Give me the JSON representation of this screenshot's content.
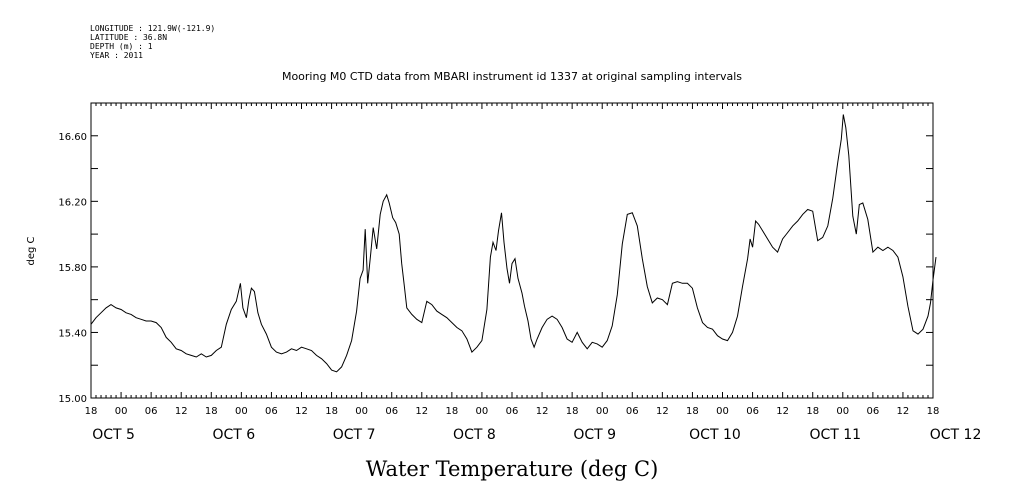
{
  "header": {
    "metadata": [
      "LONGITUDE : 121.9W(-121.9)",
      "LATITUDE : 36.8N",
      "DEPTH (m) : 1",
      "YEAR : 2011"
    ]
  },
  "chart_data": {
    "type": "line",
    "title": "Mooring M0 CTD data from MBARI instrument id 1337 at original sampling intervals",
    "xlabel": "Water Temperature (deg C)",
    "ylabel": "deg C",
    "ylim": [
      15.0,
      16.8
    ],
    "y_ticks": [
      "15.00",
      "15.40",
      "15.80",
      "16.20",
      "16.60"
    ],
    "x_hour_ticks": [
      "18",
      "00",
      "06",
      "12",
      "18",
      "00",
      "06",
      "12",
      "18",
      "00",
      "06",
      "12",
      "18",
      "00",
      "06",
      "12",
      "18",
      "00",
      "06",
      "12",
      "18",
      "00",
      "06",
      "12",
      "18",
      "00",
      "06",
      "12",
      "18"
    ],
    "x_day_labels": [
      "OCT  5",
      "OCT  6",
      "OCT  7",
      "OCT  8",
      "OCT  9",
      "OCT 10",
      "OCT 11",
      "OCT 12"
    ],
    "x_range_hours": [
      -6,
      162
    ],
    "x_unit": "hours since 2011-10-05 00:00",
    "grid": false,
    "series": [
      {
        "values": [
          [
            -6,
            15.45
          ],
          [
            -5,
            15.49
          ],
          [
            -4,
            15.52
          ],
          [
            -3,
            15.55
          ],
          [
            -2,
            15.57
          ],
          [
            -1,
            15.55
          ],
          [
            0,
            15.54
          ],
          [
            1,
            15.52
          ],
          [
            2,
            15.51
          ],
          [
            3,
            15.49
          ],
          [
            4,
            15.48
          ],
          [
            5,
            15.47
          ],
          [
            6,
            15.47
          ],
          [
            7,
            15.46
          ],
          [
            8,
            15.43
          ],
          [
            9,
            15.37
          ],
          [
            10,
            15.34
          ],
          [
            11,
            15.3
          ],
          [
            12,
            15.29
          ],
          [
            13,
            15.27
          ],
          [
            14,
            15.26
          ],
          [
            15,
            15.25
          ],
          [
            16,
            15.27
          ],
          [
            17,
            15.25
          ],
          [
            18,
            15.26
          ],
          [
            19,
            15.29
          ],
          [
            20,
            15.31
          ],
          [
            21,
            15.45
          ],
          [
            22,
            15.54
          ],
          [
            23,
            15.59
          ],
          [
            23.8,
            15.7
          ],
          [
            24.3,
            15.55
          ],
          [
            25,
            15.49
          ],
          [
            25.5,
            15.6
          ],
          [
            26,
            15.67
          ],
          [
            26.6,
            15.65
          ],
          [
            27.3,
            15.52
          ],
          [
            28,
            15.45
          ],
          [
            29,
            15.39
          ],
          [
            30,
            15.31
          ],
          [
            31,
            15.28
          ],
          [
            32,
            15.27
          ],
          [
            33,
            15.28
          ],
          [
            34,
            15.3
          ],
          [
            35,
            15.29
          ],
          [
            36,
            15.31
          ],
          [
            37,
            15.3
          ],
          [
            38,
            15.29
          ],
          [
            39,
            15.26
          ],
          [
            40,
            15.24
          ],
          [
            41,
            15.21
          ],
          [
            42,
            15.17
          ],
          [
            43,
            15.16
          ],
          [
            44,
            15.19
          ],
          [
            45,
            15.26
          ],
          [
            46,
            15.35
          ],
          [
            47,
            15.53
          ],
          [
            47.7,
            15.73
          ],
          [
            48.3,
            15.78
          ],
          [
            48.7,
            16.03
          ],
          [
            49.2,
            15.7
          ],
          [
            49.8,
            15.88
          ],
          [
            50.3,
            16.04
          ],
          [
            51,
            15.91
          ],
          [
            51.7,
            16.12
          ],
          [
            52.3,
            16.2
          ],
          [
            53,
            16.24
          ],
          [
            53.5,
            16.19
          ],
          [
            54.2,
            16.1
          ],
          [
            54.8,
            16.07
          ],
          [
            55.5,
            16.0
          ],
          [
            56,
            15.82
          ],
          [
            56.5,
            15.69
          ],
          [
            57,
            15.55
          ],
          [
            58,
            15.51
          ],
          [
            59,
            15.48
          ],
          [
            60,
            15.46
          ],
          [
            61,
            15.59
          ],
          [
            62,
            15.57
          ],
          [
            63,
            15.53
          ],
          [
            64,
            15.51
          ],
          [
            65,
            15.49
          ],
          [
            66,
            15.46
          ],
          [
            67,
            15.43
          ],
          [
            68,
            15.41
          ],
          [
            69,
            15.36
          ],
          [
            70,
            15.28
          ],
          [
            71,
            15.31
          ],
          [
            72,
            15.35
          ],
          [
            73,
            15.54
          ],
          [
            73.7,
            15.86
          ],
          [
            74.2,
            15.95
          ],
          [
            74.8,
            15.9
          ],
          [
            75.3,
            16.02
          ],
          [
            75.9,
            16.13
          ],
          [
            76.4,
            15.95
          ],
          [
            77,
            15.79
          ],
          [
            77.5,
            15.7
          ],
          [
            78,
            15.82
          ],
          [
            78.6,
            15.85
          ],
          [
            79.2,
            15.73
          ],
          [
            80,
            15.64
          ],
          [
            80.5,
            15.56
          ],
          [
            81.2,
            15.47
          ],
          [
            81.8,
            15.36
          ],
          [
            82.4,
            15.31
          ],
          [
            83,
            15.36
          ],
          [
            84,
            15.43
          ],
          [
            85,
            15.48
          ],
          [
            86,
            15.5
          ],
          [
            87,
            15.48
          ],
          [
            88,
            15.43
          ],
          [
            89,
            15.36
          ],
          [
            90,
            15.34
          ],
          [
            91,
            15.4
          ],
          [
            92,
            15.34
          ],
          [
            93,
            15.3
          ],
          [
            94,
            15.34
          ],
          [
            95,
            15.33
          ],
          [
            96,
            15.31
          ],
          [
            97,
            15.35
          ],
          [
            98,
            15.44
          ],
          [
            99,
            15.63
          ],
          [
            100,
            15.94
          ],
          [
            101,
            16.12
          ],
          [
            102,
            16.13
          ],
          [
            103,
            16.05
          ],
          [
            104,
            15.85
          ],
          [
            105,
            15.68
          ],
          [
            106,
            15.58
          ],
          [
            107,
            15.61
          ],
          [
            108,
            15.6
          ],
          [
            109,
            15.57
          ],
          [
            110,
            15.7
          ],
          [
            111,
            15.71
          ],
          [
            112,
            15.7
          ],
          [
            113,
            15.7
          ],
          [
            114,
            15.67
          ],
          [
            115,
            15.55
          ],
          [
            116,
            15.46
          ],
          [
            117,
            15.43
          ],
          [
            118,
            15.42
          ],
          [
            119,
            15.38
          ],
          [
            120,
            15.36
          ],
          [
            121,
            15.35
          ],
          [
            122,
            15.4
          ],
          [
            123,
            15.5
          ],
          [
            124,
            15.68
          ],
          [
            125,
            15.85
          ],
          [
            125.5,
            15.97
          ],
          [
            126,
            15.92
          ],
          [
            126.6,
            16.08
          ],
          [
            127.2,
            16.06
          ],
          [
            128,
            16.02
          ],
          [
            129,
            15.97
          ],
          [
            130,
            15.92
          ],
          [
            131,
            15.89
          ],
          [
            132,
            15.97
          ],
          [
            133,
            16.01
          ],
          [
            134,
            16.05
          ],
          [
            135,
            16.08
          ],
          [
            136,
            16.12
          ],
          [
            137,
            16.15
          ],
          [
            138,
            16.14
          ],
          [
            139,
            15.96
          ],
          [
            140,
            15.98
          ],
          [
            141,
            16.05
          ],
          [
            142,
            16.22
          ],
          [
            143,
            16.44
          ],
          [
            143.7,
            16.58
          ],
          [
            144.1,
            16.73
          ],
          [
            144.6,
            16.65
          ],
          [
            145.2,
            16.48
          ],
          [
            146,
            16.11
          ],
          [
            146.7,
            16.0
          ],
          [
            147.3,
            16.18
          ],
          [
            148,
            16.19
          ],
          [
            149,
            16.09
          ],
          [
            150,
            15.89
          ],
          [
            151,
            15.92
          ],
          [
            152,
            15.9
          ],
          [
            153,
            15.92
          ],
          [
            154,
            15.9
          ],
          [
            155,
            15.86
          ],
          [
            156,
            15.74
          ],
          [
            157,
            15.56
          ],
          [
            158,
            15.41
          ],
          [
            159,
            15.39
          ],
          [
            160,
            15.42
          ],
          [
            161,
            15.5
          ],
          [
            161.5,
            15.58
          ],
          [
            162,
            15.72
          ],
          [
            162.6,
            15.86
          ]
        ]
      }
    ]
  }
}
